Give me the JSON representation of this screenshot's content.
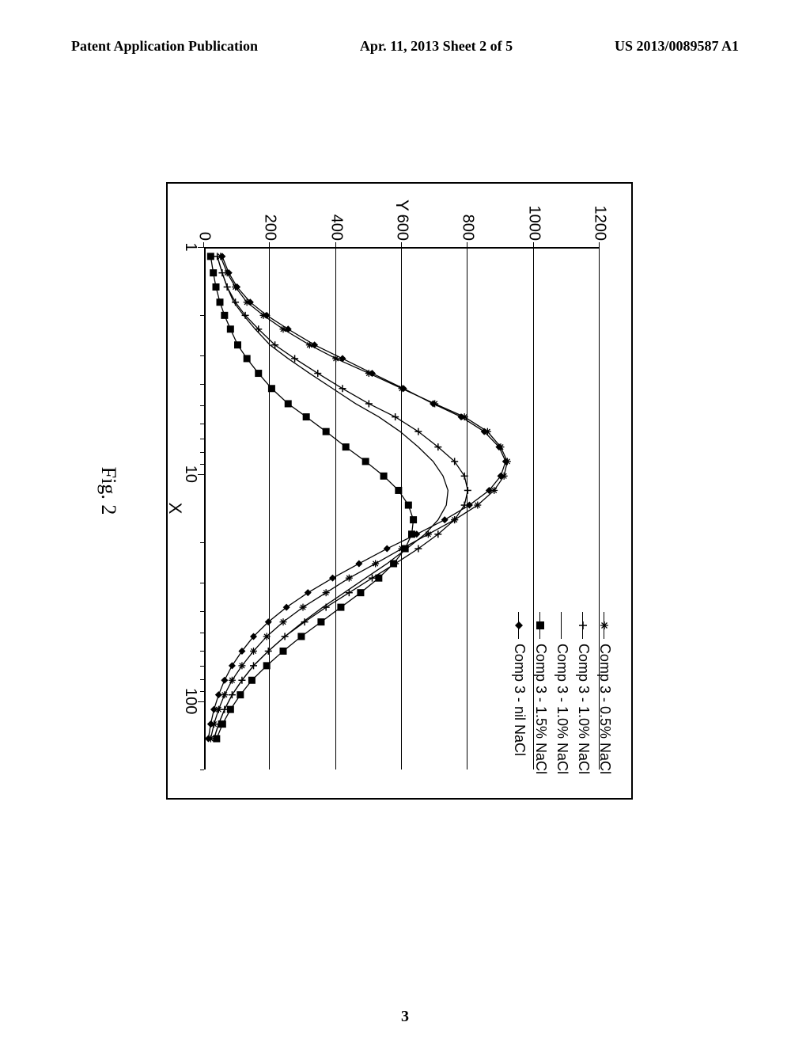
{
  "header": {
    "left": "Patent Application Publication",
    "center": "Apr. 11, 2013  Sheet 2 of 5",
    "right": "US 2013/0089587 A1"
  },
  "page_number": "3",
  "figure": {
    "caption": "Fig. 2",
    "type": "line",
    "xlabel": "X",
    "ylabel": "Y",
    "xscale": "log",
    "xlim": [
      1,
      200
    ],
    "xtick_labels": [
      "1",
      "10",
      "100"
    ],
    "xtick_values": [
      1,
      10,
      100
    ],
    "ylim": [
      0,
      1200
    ],
    "ytick_labels": [
      "0",
      "200",
      "400",
      "600",
      "800",
      "1000",
      "1200"
    ],
    "ytick_values": [
      0,
      200,
      400,
      600,
      800,
      1000,
      1200
    ],
    "grid_color": "#000000",
    "background_color": "#ffffff",
    "line_color": "#000000",
    "line_width": 1.3,
    "label_fontsize": 20,
    "axis_label_fontsize": 22,
    "legend_fontsize": 18,
    "legend_position": "top-right",
    "series": [
      {
        "label": "Comp 3 - 0.5% NaCl",
        "marker": "asterisk",
        "x": [
          1.1,
          1.3,
          1.5,
          1.75,
          2.0,
          2.3,
          2.7,
          3.1,
          3.6,
          4.2,
          4.9,
          5.6,
          6.5,
          7.6,
          8.8,
          10.2,
          11.8,
          13.7,
          15.9,
          18.4,
          21.3,
          24.8,
          28.7,
          33.3,
          38.6,
          44.8,
          51.9,
          60.2,
          69.8,
          80.9,
          93.8,
          108.8,
          126.2,
          146.3
        ],
        "y": [
          50,
          70,
          95,
          130,
          180,
          240,
          320,
          400,
          500,
          600,
          700,
          790,
          860,
          900,
          920,
          910,
          880,
          830,
          760,
          680,
          600,
          520,
          440,
          370,
          300,
          240,
          190,
          150,
          115,
          85,
          62,
          44,
          30,
          20
        ]
      },
      {
        "label": "Comp 3 - 1.0% NaCl",
        "marker": "plus",
        "x": [
          1.1,
          1.3,
          1.5,
          1.75,
          2.0,
          2.3,
          2.7,
          3.1,
          3.6,
          4.2,
          4.9,
          5.6,
          6.5,
          7.6,
          8.8,
          10.2,
          11.8,
          13.7,
          15.9,
          18.4,
          21.3,
          24.8,
          28.7,
          33.3,
          38.6,
          44.8,
          51.9,
          60.2,
          69.8,
          80.9,
          93.8,
          108.8,
          126.2,
          146.3
        ],
        "y": [
          40,
          55,
          70,
          95,
          125,
          165,
          215,
          275,
          345,
          420,
          500,
          580,
          650,
          710,
          760,
          790,
          800,
          790,
          760,
          710,
          650,
          580,
          510,
          440,
          370,
          305,
          245,
          195,
          150,
          115,
          85,
          62,
          44,
          30
        ]
      },
      {
        "label": "Comp 3 - 1.0% NaCl",
        "marker": "none",
        "x": [
          1.1,
          1.3,
          1.5,
          1.75,
          2.0,
          2.3,
          2.7,
          3.1,
          3.6,
          4.2,
          4.9,
          5.6,
          6.5,
          7.6,
          8.8,
          10.2,
          11.8,
          13.7,
          15.9,
          18.4,
          21.3,
          24.8,
          28.7,
          33.3,
          38.6,
          44.8,
          51.9,
          60.2,
          69.8,
          80.9,
          93.8,
          108.8,
          126.2,
          146.3
        ],
        "y": [
          40,
          55,
          70,
          90,
          120,
          155,
          200,
          255,
          320,
          390,
          460,
          530,
          595,
          650,
          695,
          725,
          740,
          735,
          710,
          670,
          615,
          555,
          490,
          425,
          360,
          300,
          245,
          195,
          150,
          115,
          85,
          62,
          44,
          30
        ]
      },
      {
        "label": "Comp 3 - 1.5% NaCl",
        "marker": "square",
        "x": [
          1.1,
          1.3,
          1.5,
          1.75,
          2.0,
          2.3,
          2.7,
          3.1,
          3.6,
          4.2,
          4.9,
          5.6,
          6.5,
          7.6,
          8.8,
          10.2,
          11.8,
          13.7,
          15.9,
          18.4,
          21.3,
          24.8,
          28.7,
          33.3,
          38.6,
          44.8,
          51.9,
          60.2,
          69.8,
          80.9,
          93.8,
          108.8,
          126.2,
          146.3
        ],
        "y": [
          20,
          28,
          36,
          48,
          62,
          80,
          102,
          130,
          165,
          205,
          255,
          310,
          370,
          430,
          490,
          545,
          590,
          620,
          635,
          630,
          610,
          575,
          530,
          475,
          415,
          355,
          295,
          240,
          190,
          145,
          110,
          80,
          56,
          38
        ]
      },
      {
        "label": "Comp 3 - nil NaCl",
        "marker": "diamond",
        "x": [
          1.1,
          1.3,
          1.5,
          1.75,
          2.0,
          2.3,
          2.7,
          3.1,
          3.6,
          4.2,
          4.9,
          5.6,
          6.5,
          7.6,
          8.8,
          10.2,
          11.8,
          13.7,
          15.9,
          18.4,
          21.3,
          24.8,
          28.7,
          33.3,
          38.6,
          44.8,
          51.9,
          60.2,
          69.8,
          80.9,
          93.8,
          108.8,
          126.2,
          146.3
        ],
        "y": [
          55,
          75,
          100,
          140,
          190,
          255,
          335,
          420,
          510,
          605,
          695,
          780,
          850,
          895,
          915,
          900,
          865,
          805,
          730,
          645,
          555,
          470,
          390,
          315,
          250,
          195,
          150,
          115,
          85,
          62,
          44,
          30,
          20,
          13
        ]
      }
    ]
  }
}
